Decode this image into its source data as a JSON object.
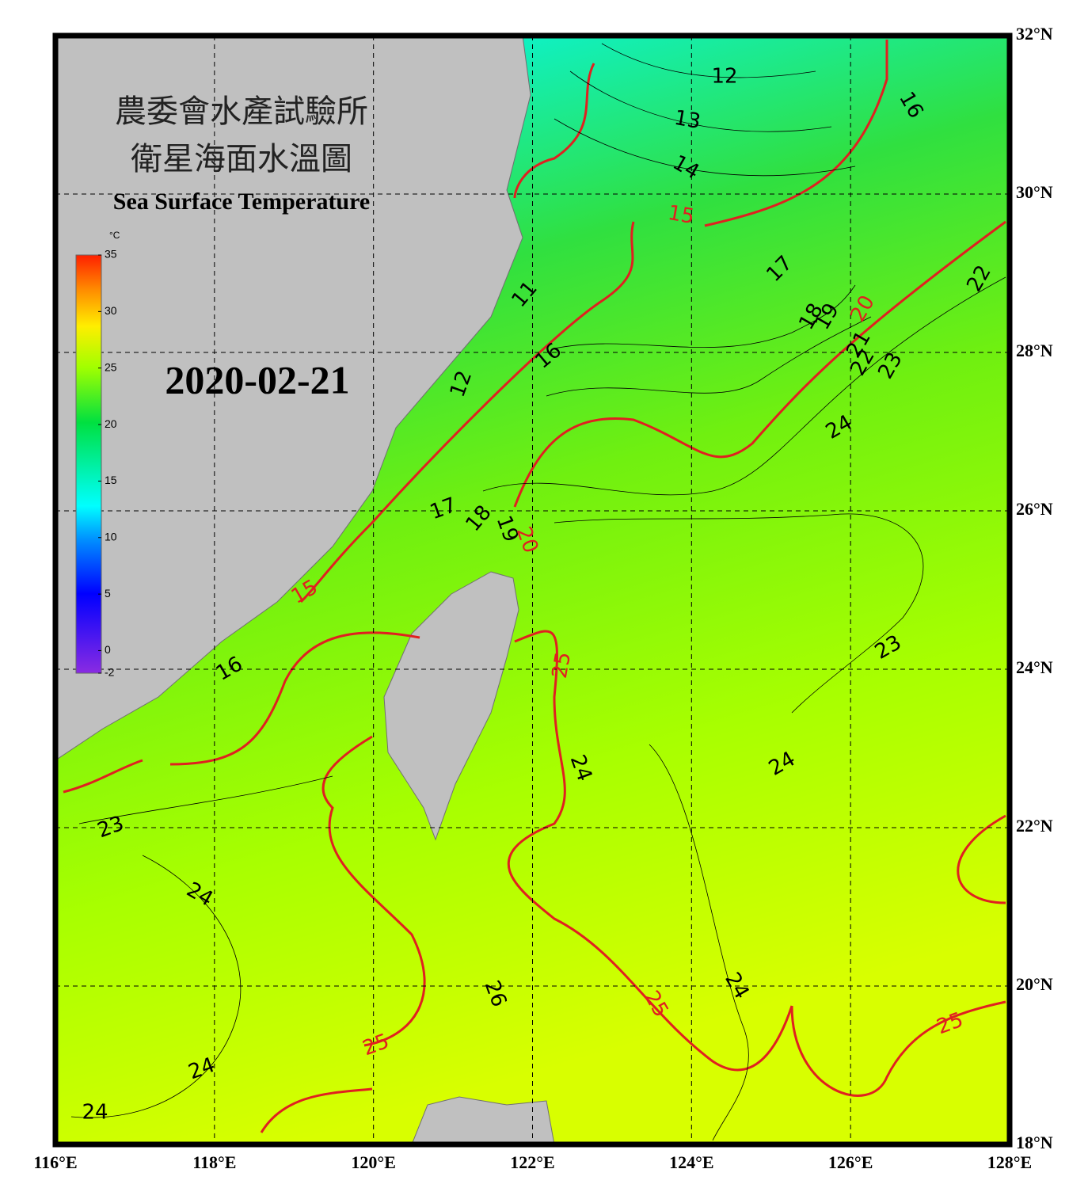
{
  "header": {
    "title_line1": "農委會水產試驗所",
    "title_line2": "衛星海面水溫圖",
    "title_en": "Sea Surface Temperature",
    "date": "2020-02-21"
  },
  "colorbar": {
    "unit": "°C",
    "min": -2,
    "max": 35,
    "ticks": [
      35,
      30,
      25,
      20,
      15,
      10,
      5,
      0,
      -2
    ]
  },
  "map": {
    "lon_range": [
      116,
      128
    ],
    "lat_range": [
      18,
      32
    ],
    "lon_ticks": [
      {
        "value": 116,
        "label": "116°E"
      },
      {
        "value": 118,
        "label": "118°E"
      },
      {
        "value": 120,
        "label": "120°E"
      },
      {
        "value": 122,
        "label": "122°E"
      },
      {
        "value": 124,
        "label": "124°E"
      },
      {
        "value": 126,
        "label": "126°E"
      },
      {
        "value": 128,
        "label": "128°E"
      }
    ],
    "lat_ticks": [
      {
        "value": 18,
        "label": "18°N"
      },
      {
        "value": 20,
        "label": "20°N"
      },
      {
        "value": 22,
        "label": "22°N"
      },
      {
        "value": 24,
        "label": "24°N"
      },
      {
        "value": 26,
        "label": "26°N"
      },
      {
        "value": 28,
        "label": "28°N"
      },
      {
        "value": 30,
        "label": "30°N"
      },
      {
        "value": 32,
        "label": "32°N"
      }
    ],
    "contour_labels": [
      12,
      13,
      14,
      15,
      16,
      17,
      18,
      19,
      20,
      21,
      22,
      23,
      22,
      11,
      12,
      16,
      17,
      18,
      19,
      20,
      24,
      16,
      15,
      25,
      24,
      24,
      23,
      23,
      24,
      26,
      25,
      24,
      25,
      24,
      24,
      25
    ]
  }
}
